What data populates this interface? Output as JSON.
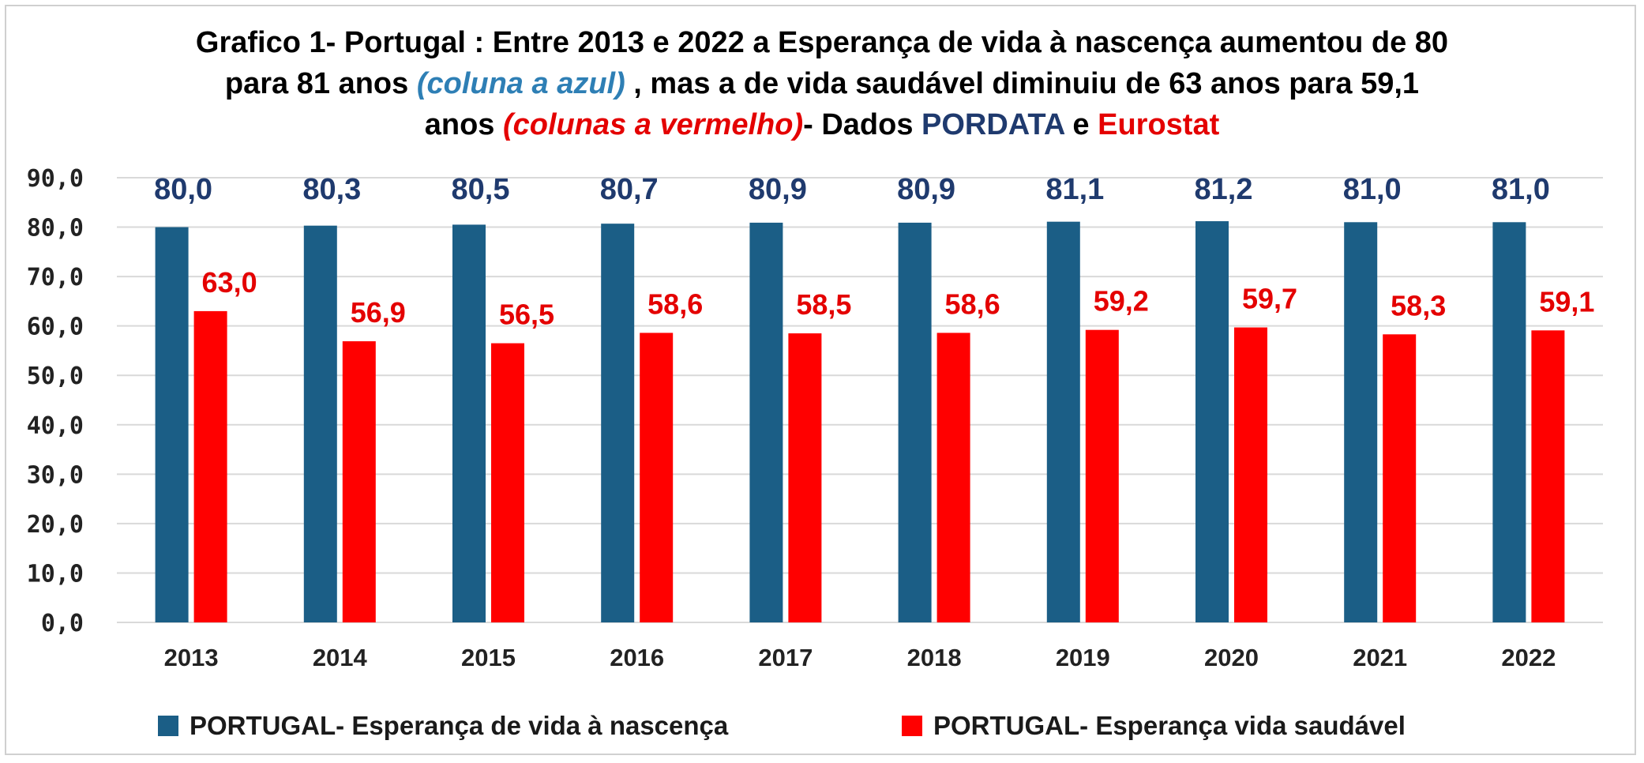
{
  "title": {
    "line1": "Grafico 1- Portugal : Entre 2013 e 2022 a Esperança de vida à nascença aumentou de 80",
    "line2_a": "para 81 anos ",
    "line2_b": "(coluna a azul)",
    "line2_c": " , mas a de vida saudável diminuiu de 63 anos para 59,1",
    "line3_a": "anos ",
    "line3_b": "(colunas a vermelho)",
    "line3_c": "- Dados ",
    "line3_d": "PORDATA",
    "line3_e": " e ",
    "line3_f": "Eurostat"
  },
  "colors": {
    "series1": "#1b5e86",
    "series2": "#ff0000",
    "label1": "#1f3a6e",
    "label2": "#e40000",
    "grid": "#d9d9d9"
  },
  "chart_data": {
    "type": "bar",
    "categories": [
      "2013",
      "2014",
      "2015",
      "2016",
      "2017",
      "2018",
      "2019",
      "2020",
      "2021",
      "2022"
    ],
    "series": [
      {
        "name": "PORTUGAL- Esperança de vida à nascença",
        "values": [
          80.0,
          80.3,
          80.5,
          80.7,
          80.9,
          80.9,
          81.1,
          81.2,
          81.0,
          81.0
        ],
        "labels": [
          "80,0",
          "80,3",
          "80,5",
          "80,7",
          "80,9",
          "80,9",
          "81,1",
          "81,2",
          "81,0",
          "81,0"
        ]
      },
      {
        "name": "PORTUGAL- Esperança vida saudável",
        "values": [
          63.0,
          56.9,
          56.5,
          58.6,
          58.5,
          58.6,
          59.2,
          59.7,
          58.3,
          59.1
        ],
        "labels": [
          "63,0",
          "56,9",
          "56,5",
          "58,6",
          "58,5",
          "58,6",
          "59,2",
          "59,7",
          "58,3",
          "59,1"
        ]
      }
    ],
    "ylim": [
      0,
      90
    ],
    "yticks": [
      0,
      10,
      20,
      30,
      40,
      50,
      60,
      70,
      80,
      90
    ],
    "ytick_labels": [
      "0,0",
      "10,0",
      "20,0",
      "30,0",
      "40,0",
      "50,0",
      "60,0",
      "70,0",
      "80,0",
      "90,0"
    ],
    "grid": true,
    "legend_position": "bottom"
  }
}
